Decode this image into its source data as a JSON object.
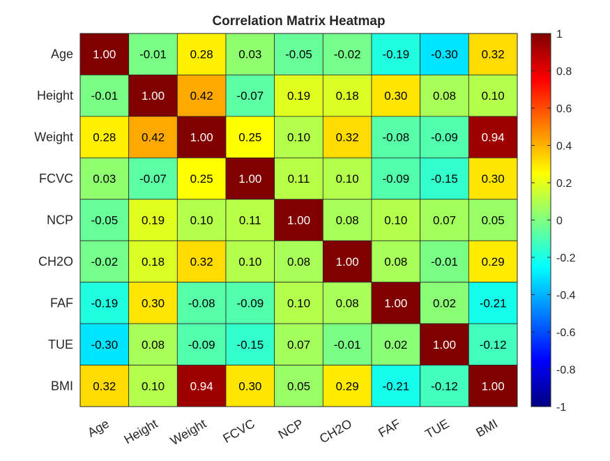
{
  "chart_data": {
    "type": "heatmap",
    "title": "Correlation Matrix Heatmap",
    "xlabel": "",
    "ylabel": "",
    "x_categories": [
      "Age",
      "Height",
      "Weight",
      "FCVC",
      "NCP",
      "CH2O",
      "FAF",
      "TUE",
      "BMI"
    ],
    "y_categories": [
      "Age",
      "Height",
      "Weight",
      "FCVC",
      "NCP",
      "CH2O",
      "FAF",
      "TUE",
      "BMI"
    ],
    "values": [
      [
        1.0,
        -0.01,
        0.28,
        0.03,
        -0.05,
        -0.02,
        -0.19,
        -0.3,
        0.32
      ],
      [
        -0.01,
        1.0,
        0.42,
        -0.07,
        0.19,
        0.18,
        0.3,
        0.08,
        0.1
      ],
      [
        0.28,
        0.42,
        1.0,
        0.25,
        0.1,
        0.32,
        -0.08,
        -0.09,
        0.94
      ],
      [
        0.03,
        -0.07,
        0.25,
        1.0,
        0.11,
        0.1,
        -0.09,
        -0.15,
        0.3
      ],
      [
        -0.05,
        0.19,
        0.1,
        0.11,
        1.0,
        0.08,
        0.1,
        0.07,
        0.05
      ],
      [
        -0.02,
        0.18,
        0.32,
        0.1,
        0.08,
        1.0,
        0.08,
        -0.01,
        0.29
      ],
      [
        -0.19,
        0.3,
        -0.08,
        -0.09,
        0.1,
        0.08,
        1.0,
        0.02,
        -0.21
      ],
      [
        -0.3,
        0.08,
        -0.09,
        -0.15,
        0.07,
        -0.01,
        0.02,
        1.0,
        -0.12
      ],
      [
        0.32,
        0.1,
        0.94,
        0.3,
        0.05,
        0.29,
        -0.21,
        -0.12,
        1.0
      ]
    ],
    "value_format": "2 decimals",
    "colormap": "jet",
    "clim": [
      -1,
      1
    ],
    "colorbar": {
      "position": "right",
      "ticks": [
        -1,
        -0.8,
        -0.6,
        -0.4,
        -0.2,
        0,
        0.2,
        0.4,
        0.6,
        0.8,
        1
      ],
      "tick_labels": [
        "-1",
        "-0.8",
        "-0.6",
        "-0.4",
        "-0.2",
        "0",
        "0.2",
        "0.4",
        "0.6",
        "0.8",
        "1"
      ]
    },
    "x_tick_rotation_deg": 30,
    "grid": false,
    "cell_text_color_dark_cells": "#ffffff",
    "cell_text_color_light_cells": "#000000"
  }
}
